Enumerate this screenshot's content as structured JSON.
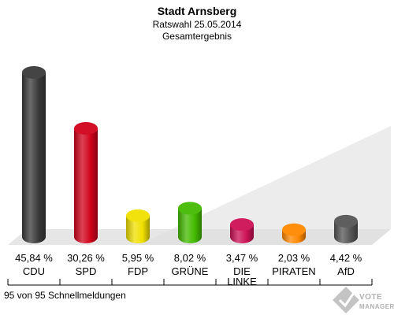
{
  "header": {
    "title": "Stadt Arnsberg",
    "subtitle": "Ratswahl 25.05.2014",
    "subtitle2": "Gesamtergebnis"
  },
  "footer": {
    "text": "95 von 95 Schnellmeldungen",
    "logo_line1": "VOTE",
    "logo_line2": "MANAGER"
  },
  "chart_data": {
    "type": "bar",
    "title": "Stadt Arnsberg",
    "subtitle": "Ratswahl 25.05.2014 · Gesamtergebnis",
    "categories": [
      "CDU",
      "SPD",
      "FDP",
      "GRÜNE",
      "DIE LINKE",
      "PIRATEN",
      "AfD"
    ],
    "category_lines": [
      [
        "CDU"
      ],
      [
        "SPD"
      ],
      [
        "FDP"
      ],
      [
        "GRÜNE"
      ],
      [
        "DIE",
        "LINKE"
      ],
      [
        "PIRATEN"
      ],
      [
        "AfD"
      ]
    ],
    "values": [
      45.84,
      30.26,
      5.95,
      8.02,
      3.47,
      2.03,
      4.42
    ],
    "value_labels": [
      "45,84 %",
      "30,26 %",
      "5,95 %",
      "8,02 %",
      "3,47 %",
      "2,03 %",
      "4,42 %"
    ],
    "colors": [
      "#3a3a3a",
      "#d0021b",
      "#f0e000",
      "#44bb00",
      "#cc1155",
      "#ff8800",
      "#555555"
    ],
    "xlabel": "",
    "ylabel": "",
    "ylim": [
      0,
      50
    ],
    "grid": false,
    "legend": "none"
  }
}
